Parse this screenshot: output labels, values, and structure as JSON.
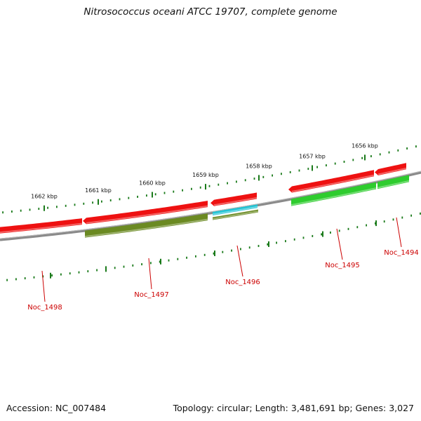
{
  "title": "Nitrosococcus oceani ATCC 19707, complete genome",
  "footer": {
    "accession": "Accession: NC_007484",
    "topology": "Topology: circular; Length: 3,481,691 bp; Genes: 3,027"
  },
  "ticks": [
    {
      "label": "1662 kbp"
    },
    {
      "label": "1661 kbp"
    },
    {
      "label": "1660 kbp"
    },
    {
      "label": "1659 kbp"
    },
    {
      "label": "1658 kbp"
    },
    {
      "label": "1657 kbp"
    },
    {
      "label": "1656 kbp"
    }
  ],
  "genes": [
    {
      "label": "Noc_1498",
      "strand": "forward",
      "color": "#ee1111"
    },
    {
      "label": "Noc_1497",
      "strand": "forward",
      "color": "#ee1111"
    },
    {
      "label": "Noc_1496",
      "strand": "forward",
      "color": "#ee1111"
    },
    {
      "label": "Noc_1495",
      "strand": "forward",
      "color": "#ee1111"
    },
    {
      "label": "Noc_1494",
      "strand": "forward",
      "color": "#ee1111"
    }
  ],
  "features": [
    {
      "color": "#6b8a22"
    },
    {
      "color": "#22c4d4"
    },
    {
      "color": "#6b8a22"
    },
    {
      "color": "#2ecc2e"
    },
    {
      "color": "#2ecc2e"
    }
  ],
  "colors": {
    "backbone": "#8a8a8a",
    "tick": "#1a7a1a",
    "label_line": "#cc0000"
  }
}
